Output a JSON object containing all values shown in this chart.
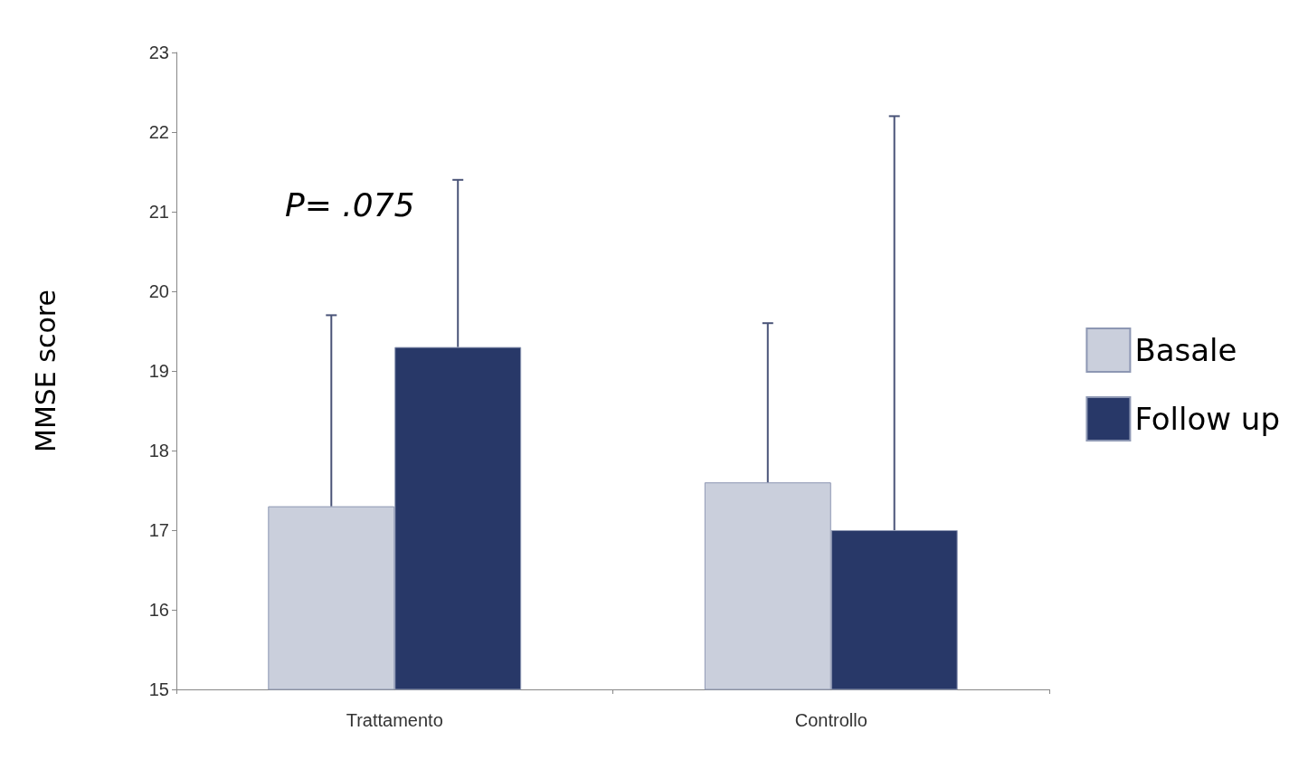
{
  "chart_data": {
    "type": "bar",
    "ylabel": "MMSE score",
    "categories": [
      "Trattamento",
      "Controllo"
    ],
    "series": [
      {
        "name": "Basale",
        "color": "#cacfdc",
        "values": [
          17.3,
          17.6
        ],
        "errors": [
          [
            17.3,
            19.7
          ],
          [
            17.6,
            19.6
          ]
        ]
      },
      {
        "name": "Follow up",
        "color": "#283868",
        "values": [
          19.3,
          17.0
        ],
        "errors": [
          [
            19.3,
            21.4
          ],
          [
            17.0,
            22.2
          ]
        ]
      }
    ],
    "ylim": [
      15,
      23
    ],
    "yticks": [
      15,
      16,
      17,
      18,
      19,
      20,
      21,
      22,
      23
    ],
    "grid": false,
    "legend": "right",
    "annotations": [
      "P= .075"
    ]
  }
}
